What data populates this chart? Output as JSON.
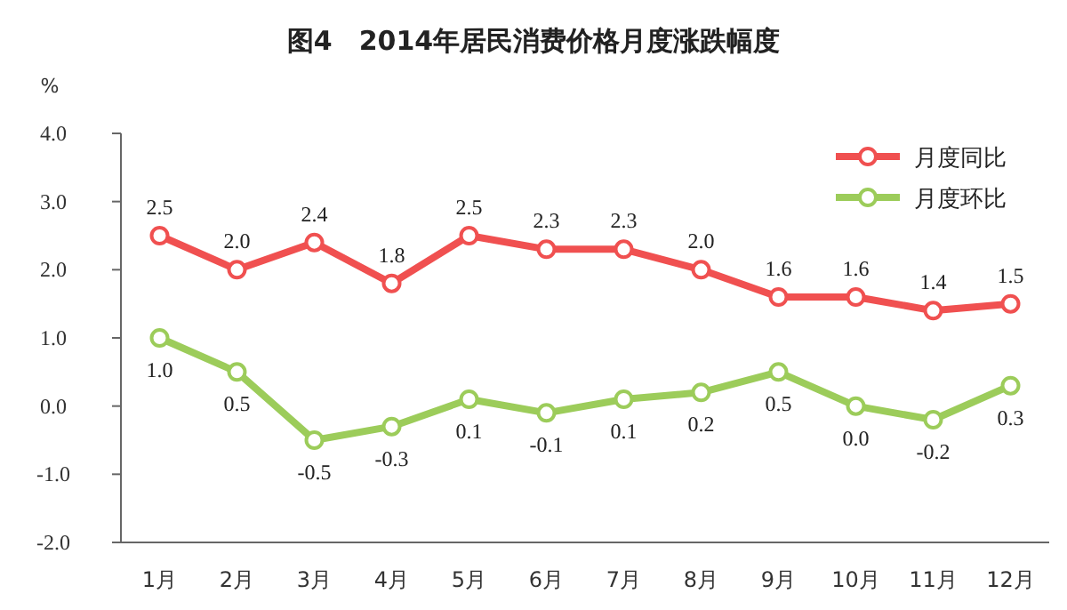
{
  "chart_data": {
    "type": "line",
    "title": "图4　2014年居民消费价格月度涨跌幅度",
    "ylabel": "%",
    "categories": [
      "1月",
      "2月",
      "3月",
      "4月",
      "5月",
      "6月",
      "7月",
      "8月",
      "9月",
      "10月",
      "11月",
      "12月"
    ],
    "series": [
      {
        "name": "月度同比",
        "color": "#f05050",
        "values": [
          2.5,
          2.0,
          2.4,
          1.8,
          2.5,
          2.3,
          2.3,
          2.0,
          1.6,
          1.6,
          1.4,
          1.5
        ],
        "value_labels": [
          "2.5",
          "2.0",
          "2.4",
          "1.8",
          "2.5",
          "2.3",
          "2.3",
          "2.0",
          "1.6",
          "1.6",
          "1.4",
          "1.5"
        ]
      },
      {
        "name": "月度环比",
        "color": "#9ccc5a",
        "values": [
          1.0,
          0.5,
          -0.5,
          -0.3,
          0.1,
          -0.1,
          0.1,
          0.2,
          0.5,
          0.0,
          -0.2,
          0.3
        ],
        "value_labels": [
          "1.0",
          "0.5",
          "-0.5",
          "-0.3",
          "0.1",
          "-0.1",
          "0.1",
          "0.2",
          "0.5",
          "0.0",
          "-0.2",
          "0.3"
        ]
      }
    ],
    "ylim": [
      -2,
      4
    ],
    "yticks": [
      {
        "value": 4,
        "label": "4.0"
      },
      {
        "value": 3,
        "label": "3.0"
      },
      {
        "value": 2,
        "label": "2.0"
      },
      {
        "value": 1,
        "label": "1.0"
      },
      {
        "value": 0,
        "label": "0.0"
      },
      {
        "value": -1,
        "label": "-1.0"
      },
      {
        "value": -2,
        "label": "-2.0"
      }
    ],
    "legend": "top right",
    "marker": "circle"
  }
}
